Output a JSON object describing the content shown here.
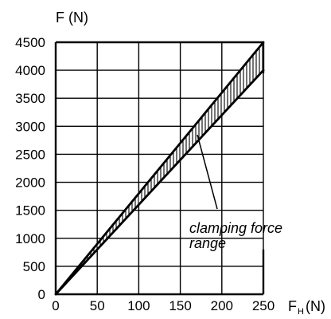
{
  "chart_data": {
    "type": "area",
    "ylabel": "F (N)",
    "xlabel_main": "F",
    "xlabel_sub": "H",
    "xlabel_unit": "(N)",
    "xlim": [
      0,
      250
    ],
    "ylim": [
      0,
      4500
    ],
    "x_ticks": [
      0,
      50,
      100,
      150,
      200,
      250
    ],
    "y_ticks": [
      0,
      500,
      1000,
      1500,
      2000,
      2500,
      3000,
      3500,
      4000,
      4500
    ],
    "x_tick_labels": [
      "0",
      "50",
      "100",
      "150",
      "200",
      "250"
    ],
    "y_tick_labels": [
      "0",
      "500",
      "1000",
      "1500",
      "2000",
      "2500",
      "3000",
      "3500",
      "4000",
      "4500"
    ],
    "grid": true,
    "series": [
      {
        "x": [
          0,
          250
        ],
        "y": [
          0,
          4500
        ]
      },
      {
        "x": [
          0,
          250
        ],
        "y": [
          0,
          4000
        ]
      }
    ],
    "annotation_lines": [
      "clamping force",
      "range"
    ]
  }
}
